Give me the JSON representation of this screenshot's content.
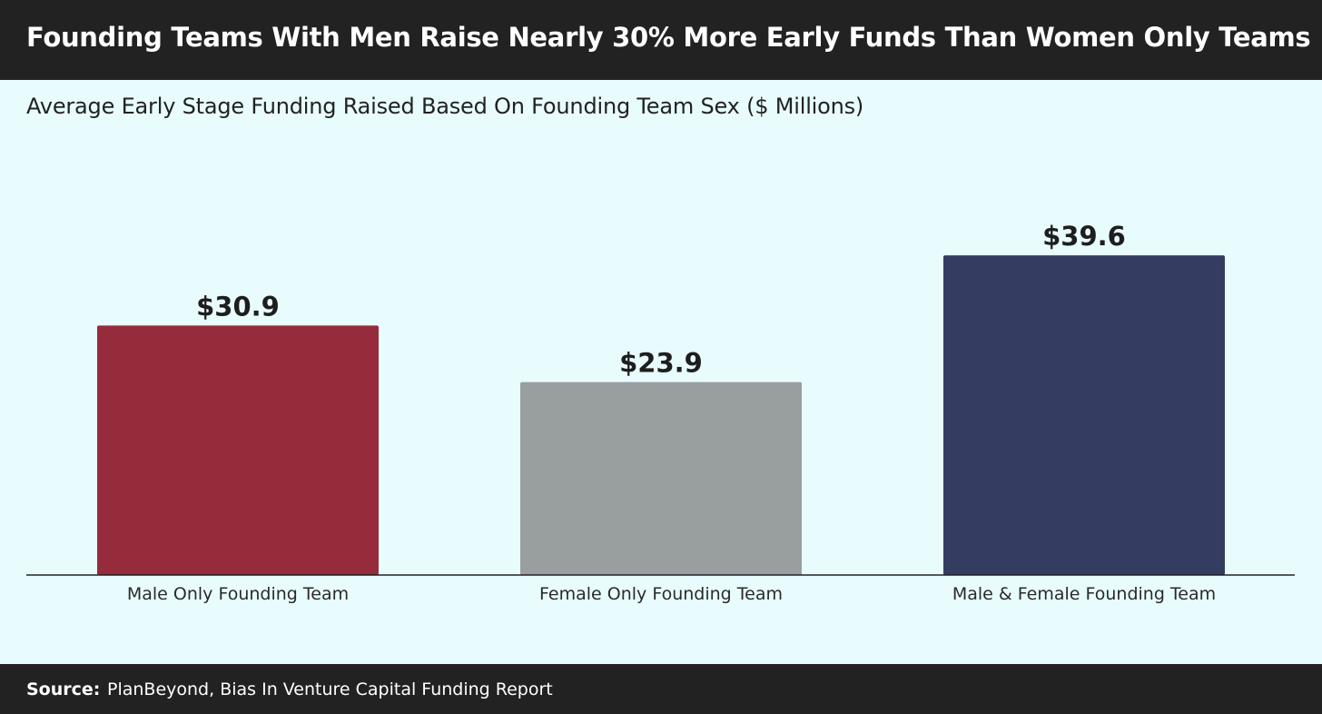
{
  "header": {
    "title": "Founding Teams With Men Raise Nearly 30% More Early Funds Than Women Only Teams"
  },
  "chart_data": {
    "type": "bar",
    "title": "Founding Teams With Men Raise Nearly 30% More Early Funds Than Women Only Teams",
    "subtitle": "Average Early Stage Funding Raised Based On Founding Team Sex ($ Millions)",
    "categories": [
      "Male Only Founding Team",
      "Female Only Founding Team",
      "Male & Female Founding Team"
    ],
    "values": [
      30.9,
      23.9,
      39.6
    ],
    "value_labels": [
      "$30.9",
      "$23.9",
      "$39.6"
    ],
    "colors": [
      "#952b3b",
      "#999e9f",
      "#353c62"
    ],
    "xlabel": "",
    "ylabel": "",
    "ylim": [
      0,
      44
    ],
    "grid": false,
    "legend": "none"
  },
  "footer": {
    "source_label": "Source:",
    "source_text": "PlanBeyond, Bias In Venture Capital Funding Report"
  },
  "colors": {
    "background": "#e8fcfd",
    "header_bg": "#222222",
    "axis": "#222222"
  }
}
